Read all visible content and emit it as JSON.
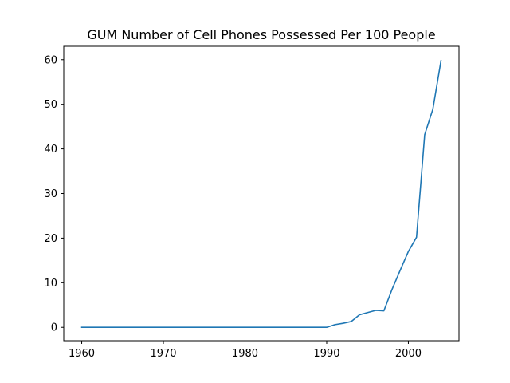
{
  "chart_data": {
    "type": "line",
    "title": "GUM Number of Cell Phones Possessed Per 100 People",
    "xlabel": "",
    "ylabel": "",
    "xlim": [
      1957.8,
      2006.2
    ],
    "ylim": [
      -3,
      63
    ],
    "x_ticks": [
      1960,
      1970,
      1980,
      1990,
      2000
    ],
    "y_ticks": [
      0,
      10,
      20,
      30,
      40,
      50,
      60
    ],
    "grid": false,
    "series_color": "#1f77b4",
    "series": [
      {
        "x": [
          1960,
          1961,
          1962,
          1963,
          1964,
          1965,
          1966,
          1967,
          1968,
          1969,
          1970,
          1971,
          1972,
          1973,
          1974,
          1975,
          1976,
          1977,
          1978,
          1979,
          1980,
          1981,
          1982,
          1983,
          1984,
          1985,
          1986,
          1987,
          1988,
          1989,
          1990,
          1991,
          1992,
          1993,
          1994,
          1995,
          1996,
          1997,
          1998,
          1999,
          2000,
          2001,
          2002,
          2003,
          2004
        ],
        "values": [
          0,
          0,
          0,
          0,
          0,
          0,
          0,
          0,
          0,
          0,
          0,
          0,
          0,
          0,
          0,
          0,
          0,
          0,
          0,
          0,
          0,
          0,
          0,
          0,
          0,
          0,
          0,
          0,
          0,
          0,
          0,
          0.6,
          0.9,
          1.3,
          2.8,
          3.3,
          3.8,
          3.7,
          8.5,
          12.8,
          17.0,
          20.2,
          43.2,
          48.9,
          59.8
        ]
      }
    ]
  }
}
